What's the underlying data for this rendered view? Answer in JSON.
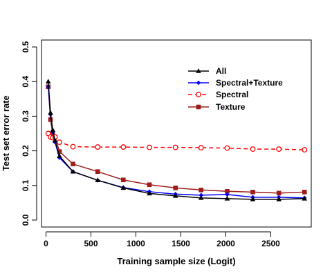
{
  "chart_data": {
    "type": "line",
    "xlabel": "Training sample size (Logit)",
    "ylabel": "Test set error rate",
    "xlim": [
      -50,
      2950
    ],
    "ylim": [
      -0.02,
      0.52
    ],
    "x_ticks": [
      0,
      500,
      1000,
      1500,
      2000,
      2500
    ],
    "x_tick_labels": [
      "0",
      "500",
      "1000",
      "1500",
      "2000",
      "2500"
    ],
    "y_ticks": [
      0.0,
      0.1,
      0.2,
      0.3,
      0.4,
      0.5
    ],
    "y_tick_labels": [
      "0.0",
      "0.1",
      "0.2",
      "0.3",
      "0.4",
      "0.5"
    ],
    "legend_position": "top-right",
    "x": [
      25,
      50,
      75,
      100,
      150,
      300,
      575,
      860,
      1150,
      1440,
      1725,
      2015,
      2300,
      2590,
      2875
    ],
    "series": [
      {
        "name": "All",
        "color": "#000000",
        "marker": "triangle",
        "dashed": false,
        "values": [
          0.4,
          0.31,
          0.26,
          0.23,
          0.185,
          0.14,
          0.115,
          0.093,
          0.077,
          0.07,
          0.064,
          0.062,
          0.06,
          0.06,
          0.062
        ]
      },
      {
        "name": "Spectral+Texture",
        "color": "#0000ff",
        "marker": "diamond",
        "dashed": false,
        "values": [
          0.385,
          0.305,
          0.255,
          0.225,
          0.18,
          0.14,
          0.115,
          0.094,
          0.082,
          0.075,
          0.072,
          0.074,
          0.066,
          0.066,
          0.064
        ]
      },
      {
        "name": "Spectral",
        "color": "#ff0000",
        "marker": "circle",
        "dashed": true,
        "values": [
          0.25,
          0.24,
          0.238,
          0.24,
          0.225,
          0.212,
          0.211,
          0.211,
          0.21,
          0.21,
          0.209,
          0.208,
          0.205,
          0.205,
          0.203
        ]
      },
      {
        "name": "Texture",
        "color": "#a11b1b",
        "marker": "square",
        "dashed": false,
        "values": [
          0.385,
          0.29,
          0.25,
          0.24,
          0.198,
          0.162,
          0.14,
          0.116,
          0.102,
          0.093,
          0.087,
          0.083,
          0.081,
          0.078,
          0.081
        ]
      }
    ]
  }
}
